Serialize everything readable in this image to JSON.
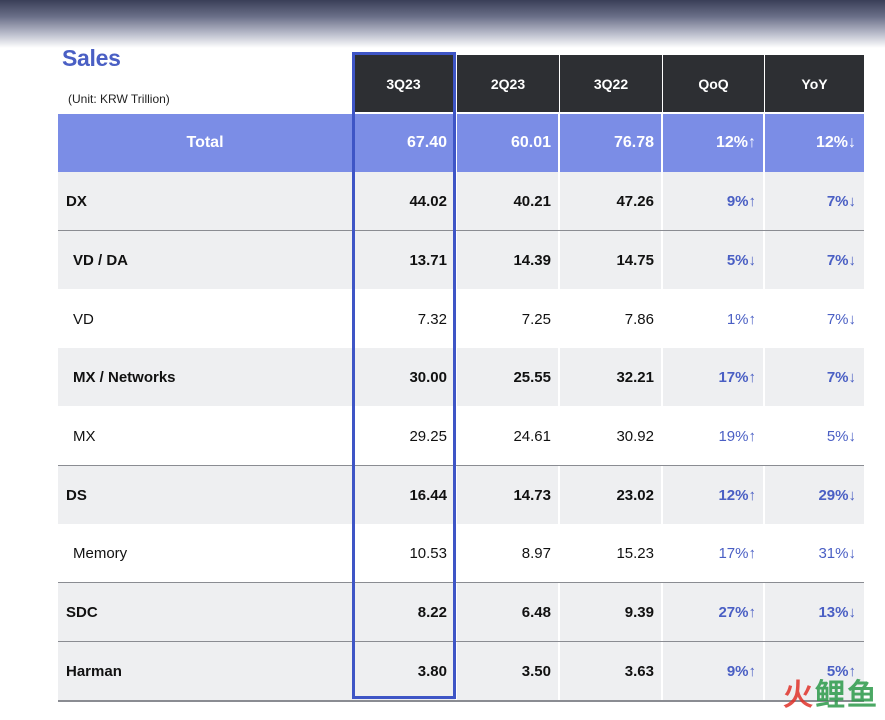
{
  "title": "Sales",
  "unit": "(Unit: KRW Trillion)",
  "columns": [
    "3Q23",
    "2Q23",
    "3Q22",
    "QoQ",
    "YoY"
  ],
  "rows": [
    {
      "label": "Total",
      "level": "total",
      "values": [
        "67.40",
        "60.01",
        "76.78",
        "12%↑",
        "12%↓"
      ]
    },
    {
      "label": "DX",
      "level": "l0",
      "values": [
        "44.02",
        "40.21",
        "47.26",
        "9%↑",
        "7%↓"
      ]
    },
    {
      "label": "VD / DA",
      "level": "l1b",
      "values": [
        "13.71",
        "14.39",
        "14.75",
        "5%↓",
        "7%↓"
      ]
    },
    {
      "label": "VD",
      "level": "l1",
      "values": [
        "7.32",
        "7.25",
        "7.86",
        "1%↑",
        "7%↓"
      ]
    },
    {
      "label": "MX / Networks",
      "level": "l1b",
      "values": [
        "30.00",
        "25.55",
        "32.21",
        "17%↑",
        "7%↓"
      ]
    },
    {
      "label": "MX",
      "level": "l1",
      "values": [
        "29.25",
        "24.61",
        "30.92",
        "19%↑",
        "5%↓"
      ]
    },
    {
      "label": "DS",
      "level": "l0",
      "values": [
        "16.44",
        "14.73",
        "23.02",
        "12%↑",
        "29%↓"
      ]
    },
    {
      "label": "Memory",
      "level": "l1",
      "values": [
        "10.53",
        "8.97",
        "15.23",
        "17%↑",
        "31%↓"
      ]
    },
    {
      "label": "SDC",
      "level": "l0",
      "values": [
        "8.22",
        "6.48",
        "9.39",
        "27%↑",
        "13%↓"
      ]
    },
    {
      "label": "Harman",
      "level": "l0",
      "values": [
        "3.80",
        "3.50",
        "3.63",
        "9%↑",
        "5%↑"
      ]
    }
  ],
  "highlighted_column": "3Q23",
  "colors": {
    "accent": "#4a5fc4",
    "total_row": "#7b8de6",
    "header": "#2d2f33",
    "highlight_border": "#3e55c6"
  },
  "watermark": "火鲤鱼"
}
